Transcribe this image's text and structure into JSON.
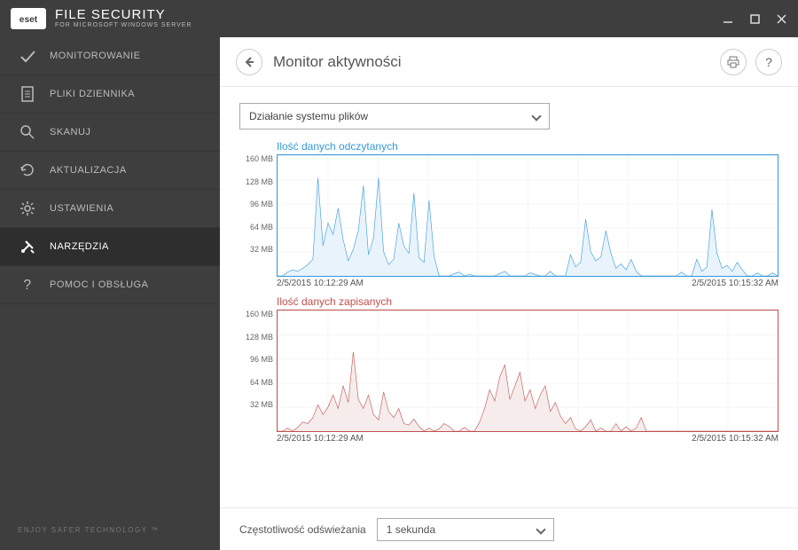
{
  "titlebar": {
    "product": "FILE SECURITY",
    "subtitle": "FOR MICROSOFT WINDOWS SERVER",
    "logo_text": "eset"
  },
  "sidebar": {
    "items": [
      {
        "label": "MONITOROWANIE",
        "icon": "check"
      },
      {
        "label": "PLIKI DZIENNIKA",
        "icon": "doc"
      },
      {
        "label": "SKANUJ",
        "icon": "search"
      },
      {
        "label": "AKTUALIZACJA",
        "icon": "refresh"
      },
      {
        "label": "USTAWIENIA",
        "icon": "gear"
      },
      {
        "label": "NARZĘDZIA",
        "icon": "tools",
        "active": true
      },
      {
        "label": "POMOC I OBSŁUGA",
        "icon": "help"
      }
    ],
    "footer": "ENJOY SAFER TECHNOLOGY ™"
  },
  "header": {
    "title": "Monitor aktywności",
    "help_label": "?"
  },
  "activity_select": {
    "value": "Działanie systemu plików"
  },
  "charts": {
    "ytick_labels": [
      "160 MB",
      "128 MB",
      "96 MB",
      "64 MB",
      "32 MB"
    ],
    "ylim": [
      0,
      160
    ],
    "x_start": "2/5/2015 10:12:29 AM",
    "x_end": "2/5/2015 10:15:32 AM",
    "grid_color": "#f0f0f0",
    "read": {
      "title": "Ilość danych odczytanych",
      "color": "#3498db",
      "fill": "#e8f3fb",
      "values": [
        0,
        0,
        5,
        8,
        6,
        10,
        15,
        22,
        130,
        40,
        70,
        55,
        90,
        48,
        20,
        35,
        60,
        120,
        28,
        50,
        130,
        32,
        15,
        22,
        70,
        40,
        30,
        110,
        24,
        18,
        100,
        26,
        0,
        0,
        0,
        3,
        5,
        0,
        2,
        0,
        0,
        0,
        0,
        0,
        3,
        6,
        0,
        0,
        0,
        0,
        4,
        2,
        0,
        0,
        6,
        0,
        0,
        0,
        28,
        12,
        18,
        75,
        32,
        20,
        25,
        60,
        30,
        10,
        16,
        8,
        22,
        6,
        0,
        0,
        0,
        0,
        0,
        0,
        0,
        0,
        5,
        0,
        0,
        22,
        6,
        12,
        88,
        30,
        10,
        14,
        6,
        18,
        8,
        0,
        0,
        4,
        0,
        0,
        4,
        0
      ]
    },
    "write": {
      "title": "Ilość danych zapisanych",
      "color": "#c0504d",
      "fill": "#f6ecec",
      "values": [
        0,
        0,
        4,
        0,
        5,
        12,
        10,
        18,
        35,
        22,
        32,
        48,
        30,
        60,
        38,
        105,
        42,
        30,
        48,
        22,
        15,
        52,
        26,
        18,
        30,
        10,
        8,
        16,
        6,
        0,
        4,
        0,
        3,
        10,
        6,
        0,
        0,
        5,
        0,
        0,
        12,
        30,
        55,
        40,
        72,
        88,
        42,
        60,
        78,
        40,
        55,
        30,
        48,
        60,
        26,
        38,
        20,
        10,
        18,
        3,
        0,
        6,
        15,
        0,
        4,
        0,
        0,
        10,
        0,
        6,
        0,
        4,
        18,
        0,
        0,
        0,
        0,
        0,
        0,
        0,
        0,
        0,
        0,
        0,
        0,
        0,
        0,
        0,
        0,
        0,
        0,
        0,
        0,
        0,
        0,
        0,
        0,
        0,
        0,
        0
      ]
    }
  },
  "footer": {
    "label": "Częstotliwość odświeżania",
    "select_value": "1 sekunda"
  }
}
